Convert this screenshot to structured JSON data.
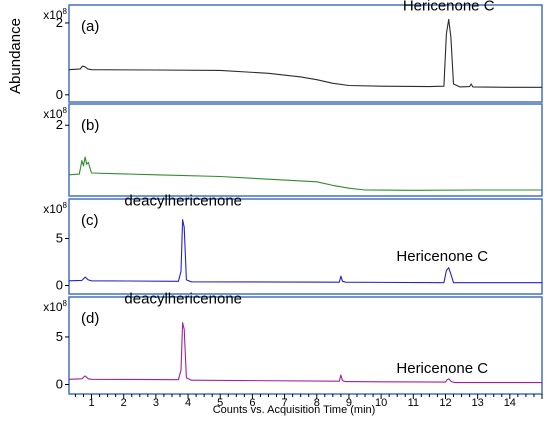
{
  "chart_data": {
    "type": "line",
    "y_axis_label": "Abundance",
    "x_axis_label": "Counts vs. Acquisition Time (min)",
    "x_range": [
      0.3,
      15.0
    ],
    "x_ticks": [
      "1",
      "2",
      "3",
      "4",
      "5",
      "6",
      "7",
      "8",
      "9",
      "10",
      "11",
      "12",
      "13",
      "14"
    ],
    "y_scale_label_base": "x10",
    "y_scale_label_exp": "8",
    "panels": [
      {
        "letter": "(a)",
        "color": "#2b2b2b",
        "show_scale_label": true,
        "y_range": [
          -0.2,
          2.5
        ],
        "y_ticks": [
          "0",
          "2"
        ],
        "annotations": [
          {
            "text": "Hericenone C",
            "x": 12.1,
            "y": 2.35
          }
        ],
        "series": [
          [
            0.3,
            0.7
          ],
          [
            0.65,
            0.72
          ],
          [
            0.72,
            0.8
          ],
          [
            0.8,
            0.78
          ],
          [
            0.88,
            0.72
          ],
          [
            1.0,
            0.7
          ],
          [
            3.0,
            0.69
          ],
          [
            5.0,
            0.68
          ],
          [
            6.5,
            0.6
          ],
          [
            7.5,
            0.5
          ],
          [
            8.0,
            0.42
          ],
          [
            8.5,
            0.32
          ],
          [
            9.0,
            0.26
          ],
          [
            10.0,
            0.24
          ],
          [
            11.5,
            0.23
          ],
          [
            11.95,
            0.24
          ],
          [
            12.03,
            1.7
          ],
          [
            12.1,
            2.1
          ],
          [
            12.17,
            1.6
          ],
          [
            12.25,
            0.3
          ],
          [
            12.45,
            0.22
          ],
          [
            12.75,
            0.23
          ],
          [
            12.8,
            0.3
          ],
          [
            12.85,
            0.22
          ],
          [
            14.0,
            0.21
          ],
          [
            15.0,
            0.21
          ]
        ]
      },
      {
        "letter": "(b)",
        "color": "#2e8b2e",
        "show_scale_label": true,
        "y_range": [
          0,
          2.6
        ],
        "y_ticks": [
          "2"
        ],
        "annotations": [],
        "series": [
          [
            0.3,
            0.6
          ],
          [
            0.62,
            0.62
          ],
          [
            0.7,
            1.0
          ],
          [
            0.75,
            0.85
          ],
          [
            0.8,
            1.1
          ],
          [
            0.85,
            0.9
          ],
          [
            0.9,
            0.95
          ],
          [
            1.0,
            0.65
          ],
          [
            3.0,
            0.6
          ],
          [
            5.0,
            0.55
          ],
          [
            7.0,
            0.45
          ],
          [
            8.0,
            0.4
          ],
          [
            8.5,
            0.3
          ],
          [
            9.0,
            0.22
          ],
          [
            9.5,
            0.17
          ],
          [
            11.0,
            0.16
          ],
          [
            13.0,
            0.17
          ],
          [
            15.0,
            0.17
          ]
        ]
      },
      {
        "letter": "(c)",
        "color": "#2323c8",
        "show_scale_label": true,
        "y_range": [
          -0.9,
          9.2
        ],
        "y_ticks": [
          "0",
          "5"
        ],
        "annotations": [
          {
            "text": "deacylhericenone",
            "x": 3.85,
            "y": 8.5
          },
          {
            "text": "Hericenone C",
            "x": 11.9,
            "y": 2.6
          }
        ],
        "series": [
          [
            0.3,
            0.5
          ],
          [
            0.7,
            0.55
          ],
          [
            0.8,
            0.9
          ],
          [
            0.9,
            0.6
          ],
          [
            1.0,
            0.5
          ],
          [
            3.7,
            0.45
          ],
          [
            3.78,
            1.5
          ],
          [
            3.83,
            7.0
          ],
          [
            3.88,
            6.2
          ],
          [
            3.95,
            0.6
          ],
          [
            4.1,
            0.4
          ],
          [
            8.7,
            0.35
          ],
          [
            8.75,
            1.0
          ],
          [
            8.8,
            0.45
          ],
          [
            8.9,
            0.35
          ],
          [
            11.95,
            0.3
          ],
          [
            12.03,
            1.6
          ],
          [
            12.1,
            1.9
          ],
          [
            12.17,
            1.2
          ],
          [
            12.25,
            0.3
          ],
          [
            15.0,
            0.3
          ]
        ]
      },
      {
        "letter": "(d)",
        "color": "#a0209f",
        "show_scale_label": true,
        "y_range": [
          -1.0,
          9.2
        ],
        "y_ticks": [
          "0",
          "5"
        ],
        "annotations": [
          {
            "text": "deacylhericenone",
            "x": 3.85,
            "y": 8.5
          },
          {
            "text": "Hericenone C",
            "x": 11.9,
            "y": 1.2
          }
        ],
        "series": [
          [
            0.3,
            0.55
          ],
          [
            0.7,
            0.6
          ],
          [
            0.8,
            0.9
          ],
          [
            0.9,
            0.6
          ],
          [
            1.0,
            0.55
          ],
          [
            3.7,
            0.5
          ],
          [
            3.78,
            1.5
          ],
          [
            3.83,
            6.5
          ],
          [
            3.88,
            5.8
          ],
          [
            3.95,
            0.7
          ],
          [
            4.1,
            0.45
          ],
          [
            8.7,
            0.35
          ],
          [
            8.75,
            1.0
          ],
          [
            8.8,
            0.4
          ],
          [
            8.9,
            0.3
          ],
          [
            12.0,
            0.25
          ],
          [
            12.05,
            0.5
          ],
          [
            12.1,
            0.6
          ],
          [
            12.18,
            0.3
          ],
          [
            12.3,
            0.2
          ],
          [
            15.0,
            0.2
          ]
        ]
      }
    ]
  }
}
